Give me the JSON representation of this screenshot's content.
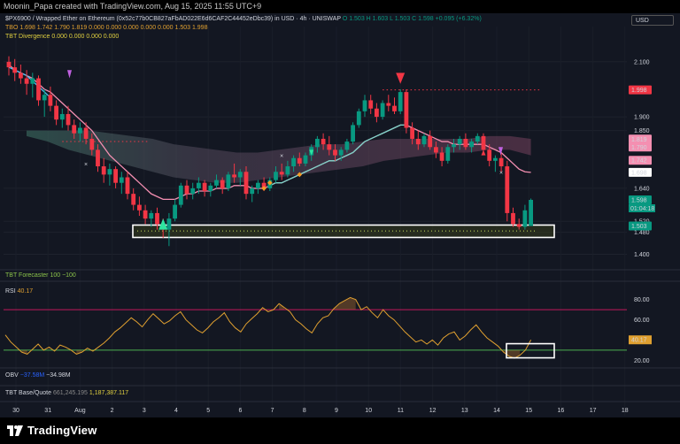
{
  "header": {
    "text": "Moonin_Papa created with TradingView.com, Aug 15, 2025 11:55 UTC+9"
  },
  "currency_button": "USD",
  "main_legend": {
    "symbol": "$PX6900 / Wrapped Ether on Ethereum (0x52c77b0CB827aFbAD022E6d6CAF2C44452eDbc39) in USD · 4h · UNISWAP",
    "ohlc": "O 1.503  H 1.603  L 1.503  C 1.598  +0.095 (+6.32%)",
    "tbo": "TBO  1.698  1.742  1.790  1.819  0.000  0.000  0.000  0.000  0.000  1.503  1.998",
    "divergence": "TBT Divergence  0.000  0.000  0.000  0.000"
  },
  "forecaster_legend": "TBT Forecaster  100  −100",
  "rsi_legend": {
    "name": "RSI",
    "value": "40.17"
  },
  "obv_legend": {
    "name": "OBV",
    "v1": "−37.58M",
    "v2": "−34.98M"
  },
  "basequote_legend": {
    "name": "TBT Base/Quote",
    "v1": "661,245.195",
    "v2": "1,187,387.117"
  },
  "footer_brand": "TradingView",
  "colors": {
    "bg": "#131722",
    "up": "#089981",
    "down": "#f23645",
    "rsi": "#e0a030",
    "fast": "#f48fb1",
    "slow": "#4fc3f7"
  },
  "chart_data": [
    {
      "type": "candlestick",
      "title": "$PX6900 / Wrapped Ether on Ethereum",
      "y_ticks": [
        "2.100",
        "1.900",
        "1.850",
        "1.640",
        "1.520",
        "1.480",
        "1.400"
      ],
      "x_ticks": [
        "30",
        "31",
        "Aug",
        "2",
        "3",
        "4",
        "5",
        "6",
        "7",
        "8",
        "9",
        "10",
        "11",
        "12",
        "13",
        "14",
        "15",
        "16",
        "17",
        "18"
      ],
      "price_labels": [
        {
          "text": "1.998",
          "value": 1.998,
          "color": "#f23645"
        },
        {
          "text": "1.819",
          "value": 1.819,
          "color": "#f48fb1"
        },
        {
          "text": "1.790",
          "value": 1.79,
          "color": "#f48fb1"
        },
        {
          "text": "1.742",
          "value": 1.742,
          "color": "#f48fb1"
        },
        {
          "text": "1.698",
          "value": 1.698,
          "color": "#ffffff"
        },
        {
          "text": "1.598",
          "value": 1.598,
          "color": "#089981",
          "sub": "01:04:18"
        },
        {
          "text": "1.503",
          "value": 1.503,
          "color": "#089981"
        }
      ],
      "candles": [
        [
          2.1,
          2.12,
          2.05,
          2.08
        ],
        [
          2.08,
          2.11,
          2.03,
          2.06
        ],
        [
          2.06,
          2.09,
          2.02,
          2.04
        ],
        [
          2.04,
          2.07,
          1.98,
          2.02
        ],
        [
          2.02,
          2.06,
          1.97,
          2.04
        ],
        [
          2.04,
          2.05,
          1.94,
          1.96
        ],
        [
          1.96,
          2.0,
          1.9,
          1.98
        ],
        [
          1.98,
          2.01,
          1.92,
          1.94
        ],
        [
          1.94,
          1.96,
          1.87,
          1.89
        ],
        [
          1.89,
          1.93,
          1.86,
          1.91
        ],
        [
          1.91,
          1.94,
          1.85,
          1.87
        ],
        [
          1.87,
          1.89,
          1.82,
          1.84
        ],
        [
          1.84,
          1.88,
          1.81,
          1.86
        ],
        [
          1.86,
          1.88,
          1.8,
          1.82
        ],
        [
          1.82,
          1.84,
          1.76,
          1.78
        ],
        [
          1.78,
          1.8,
          1.7,
          1.72
        ],
        [
          1.72,
          1.75,
          1.66,
          1.69
        ],
        [
          1.69,
          1.73,
          1.65,
          1.71
        ],
        [
          1.71,
          1.72,
          1.64,
          1.66
        ],
        [
          1.66,
          1.7,
          1.62,
          1.68
        ],
        [
          1.68,
          1.7,
          1.6,
          1.62
        ],
        [
          1.62,
          1.64,
          1.56,
          1.58
        ],
        [
          1.58,
          1.61,
          1.54,
          1.56
        ],
        [
          1.56,
          1.58,
          1.51,
          1.53
        ],
        [
          1.53,
          1.56,
          1.5,
          1.55
        ],
        [
          1.55,
          1.57,
          1.49,
          1.51
        ],
        [
          1.51,
          1.53,
          1.46,
          1.49
        ],
        [
          1.49,
          1.55,
          1.43,
          1.53
        ],
        [
          1.53,
          1.6,
          1.52,
          1.58
        ],
        [
          1.58,
          1.66,
          1.57,
          1.65
        ],
        [
          1.65,
          1.67,
          1.6,
          1.62
        ],
        [
          1.62,
          1.66,
          1.6,
          1.64
        ],
        [
          1.64,
          1.68,
          1.62,
          1.66
        ],
        [
          1.66,
          1.67,
          1.61,
          1.63
        ],
        [
          1.63,
          1.66,
          1.61,
          1.65
        ],
        [
          1.65,
          1.69,
          1.64,
          1.67
        ],
        [
          1.67,
          1.68,
          1.62,
          1.64
        ],
        [
          1.64,
          1.7,
          1.63,
          1.69
        ],
        [
          1.69,
          1.73,
          1.66,
          1.68
        ],
        [
          1.68,
          1.71,
          1.65,
          1.7
        ],
        [
          1.7,
          1.72,
          1.6,
          1.62
        ],
        [
          1.62,
          1.65,
          1.59,
          1.64
        ],
        [
          1.64,
          1.67,
          1.62,
          1.66
        ],
        [
          1.66,
          1.68,
          1.63,
          1.64
        ],
        [
          1.64,
          1.68,
          1.63,
          1.67
        ],
        [
          1.67,
          1.72,
          1.66,
          1.7
        ],
        [
          1.7,
          1.73,
          1.67,
          1.69
        ],
        [
          1.69,
          1.74,
          1.68,
          1.72
        ],
        [
          1.72,
          1.76,
          1.7,
          1.75
        ],
        [
          1.75,
          1.77,
          1.72,
          1.73
        ],
        [
          1.73,
          1.77,
          1.72,
          1.76
        ],
        [
          1.76,
          1.8,
          1.74,
          1.79
        ],
        [
          1.79,
          1.83,
          1.77,
          1.82
        ],
        [
          1.82,
          1.84,
          1.78,
          1.8
        ],
        [
          1.8,
          1.83,
          1.76,
          1.78
        ],
        [
          1.78,
          1.8,
          1.74,
          1.76
        ],
        [
          1.76,
          1.79,
          1.74,
          1.78
        ],
        [
          1.78,
          1.82,
          1.77,
          1.81
        ],
        [
          1.81,
          1.88,
          1.8,
          1.87
        ],
        [
          1.87,
          1.93,
          1.86,
          1.92
        ],
        [
          1.92,
          1.98,
          1.9,
          1.96
        ],
        [
          1.96,
          1.98,
          1.91,
          1.93
        ],
        [
          1.93,
          1.95,
          1.88,
          1.9
        ],
        [
          1.9,
          1.96,
          1.89,
          1.95
        ],
        [
          1.95,
          1.98,
          1.92,
          1.94
        ],
        [
          1.94,
          1.97,
          1.91,
          1.92
        ],
        [
          1.92,
          2.0,
          1.91,
          1.99
        ],
        [
          1.99,
          2.0,
          1.84,
          1.86
        ],
        [
          1.86,
          1.88,
          1.8,
          1.82
        ],
        [
          1.82,
          1.85,
          1.78,
          1.8
        ],
        [
          1.8,
          1.84,
          1.79,
          1.83
        ],
        [
          1.83,
          1.85,
          1.78,
          1.79
        ],
        [
          1.79,
          1.81,
          1.75,
          1.77
        ],
        [
          1.77,
          1.79,
          1.72,
          1.74
        ],
        [
          1.74,
          1.8,
          1.73,
          1.79
        ],
        [
          1.79,
          1.82,
          1.77,
          1.8
        ],
        [
          1.8,
          1.83,
          1.78,
          1.82
        ],
        [
          1.82,
          1.84,
          1.78,
          1.79
        ],
        [
          1.79,
          1.82,
          1.77,
          1.81
        ],
        [
          1.81,
          1.84,
          1.8,
          1.83
        ],
        [
          1.83,
          1.84,
          1.77,
          1.78
        ],
        [
          1.78,
          1.8,
          1.72,
          1.74
        ],
        [
          1.74,
          1.76,
          1.7,
          1.75
        ],
        [
          1.75,
          1.77,
          1.7,
          1.72
        ],
        [
          1.72,
          1.74,
          1.52,
          1.55
        ],
        [
          1.55,
          1.57,
          1.5,
          1.51
        ],
        [
          1.51,
          1.53,
          1.49,
          1.5
        ],
        [
          1.5,
          1.58,
          1.49,
          1.56
        ],
        [
          1.503,
          1.603,
          1.503,
          1.598
        ]
      ],
      "fast_line": [
        2.09,
        2.07,
        2.06,
        2.05,
        2.04,
        2.02,
        2.0,
        1.99,
        1.97,
        1.95,
        1.93,
        1.91,
        1.89,
        1.87,
        1.85,
        1.82,
        1.79,
        1.76,
        1.74,
        1.72,
        1.7,
        1.68,
        1.66,
        1.64,
        1.62,
        1.61,
        1.6,
        1.6,
        1.6,
        1.61,
        1.62,
        1.62,
        1.63,
        1.63,
        1.63,
        1.64,
        1.64,
        1.64,
        1.65,
        1.65,
        1.65,
        1.64,
        1.64,
        1.64,
        1.65,
        1.66,
        1.66,
        1.67,
        1.68,
        1.69,
        1.7,
        1.71,
        1.72,
        1.73,
        1.74,
        1.74,
        1.75,
        1.76,
        1.77,
        1.79,
        1.81,
        1.82,
        1.83,
        1.84,
        1.85,
        1.86,
        1.87,
        1.87,
        1.86,
        1.85,
        1.84,
        1.83,
        1.82,
        1.81,
        1.81,
        1.8,
        1.8,
        1.8,
        1.8,
        1.8,
        1.8,
        1.79,
        1.78,
        1.77,
        1.75,
        1.73,
        1.71,
        1.7,
        1.698
      ],
      "slow_line": [
        2.08,
        2.07,
        2.06,
        2.05,
        2.03,
        2.01,
        1.99,
        1.97
      ],
      "cloud_upper": [
        1.85,
        1.85,
        1.85,
        1.85,
        1.84,
        1.83,
        1.82,
        1.8,
        1.79,
        1.78,
        1.77,
        1.77,
        1.78,
        1.79,
        1.8,
        1.8,
        1.81,
        1.82,
        1.82,
        1.82,
        1.82,
        1.82,
        1.83,
        1.83,
        1.82
      ],
      "cloud_lower": [
        1.83,
        1.81,
        1.78,
        1.76,
        1.74,
        1.72,
        1.7,
        1.68,
        1.67,
        1.66,
        1.66,
        1.67,
        1.68,
        1.69,
        1.7,
        1.71,
        1.72,
        1.74,
        1.75,
        1.76,
        1.77,
        1.77,
        1.78,
        1.78,
        1.76
      ],
      "resistance_level": 1.998,
      "support_level": 1.485,
      "inner_dotted_level": 1.81
    },
    {
      "type": "line",
      "name": "RSI",
      "y_ticks": [
        "80.00",
        "60.00",
        "20.00"
      ],
      "levels": [
        70,
        30
      ],
      "current": 40.17,
      "values": [
        45,
        38,
        33,
        28,
        26,
        31,
        36,
        30,
        33,
        29,
        35,
        33,
        30,
        26,
        28,
        32,
        29,
        33,
        37,
        42,
        48,
        52,
        57,
        62,
        58,
        53,
        60,
        66,
        61,
        56,
        59,
        64,
        68,
        60,
        55,
        50,
        47,
        52,
        58,
        62,
        67,
        58,
        52,
        48,
        56,
        61,
        66,
        72,
        68,
        70,
        76,
        72,
        68,
        60,
        56,
        51,
        47,
        56,
        62,
        64,
        71,
        76,
        79,
        82,
        80,
        70,
        73,
        67,
        62,
        70,
        64,
        60,
        54,
        48,
        43,
        38,
        40,
        36,
        40,
        35,
        42,
        46,
        48,
        40,
        44,
        50,
        55,
        48,
        42,
        38,
        34,
        28,
        24,
        22,
        25,
        30,
        40.17
      ]
    }
  ]
}
